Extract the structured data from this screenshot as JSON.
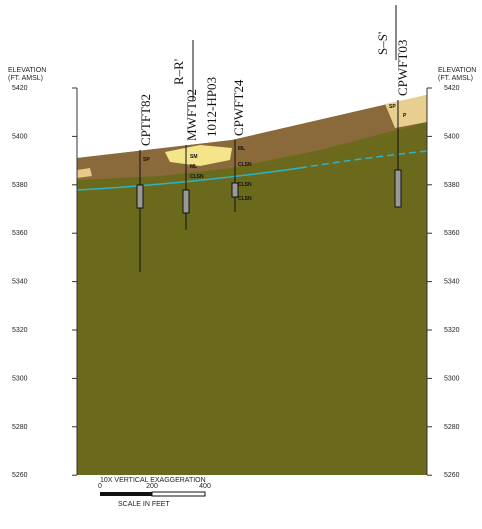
{
  "axis": {
    "left_title": [
      "ELEVATION",
      "(FT. AMSL)"
    ],
    "right_title": [
      "ELEVATION",
      "(FT. AMSL)"
    ],
    "labels": [
      "5420",
      "5400",
      "5380",
      "5360",
      "5340",
      "5320",
      "5300",
      "5280",
      "5260"
    ]
  },
  "sections": [
    {
      "label": "R–R'"
    },
    {
      "label": "S–S'"
    }
  ],
  "borings": [
    {
      "name": "CPTFT82",
      "soils": [
        "SP"
      ]
    },
    {
      "name": "MWFT02",
      "soils": [
        "SM",
        "ML",
        "CLSN"
      ]
    },
    {
      "name": "1012-HP03",
      "soils": []
    },
    {
      "name": "CPWFT24",
      "soils": [
        "ML",
        "CLSN",
        "CLSN",
        "CLSN"
      ]
    },
    {
      "name": "CPWFT03",
      "soils": [
        "SP",
        "P"
      ]
    }
  ],
  "scale": {
    "exaggeration": "10X VERTICAL EXAGGERATION",
    "ticks": [
      "0",
      "200",
      "400"
    ],
    "caption": "SCALE IN FEET"
  }
}
